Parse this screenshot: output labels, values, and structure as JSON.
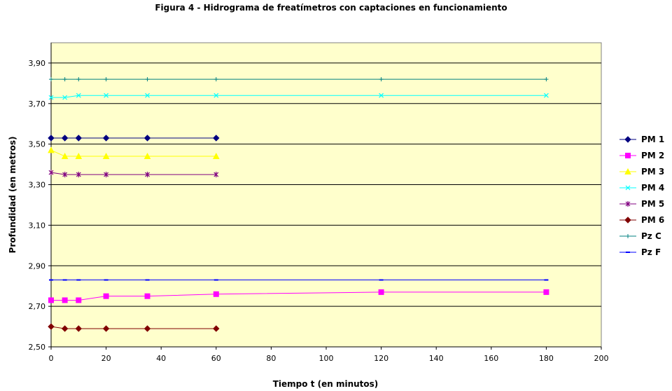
{
  "chart_data": {
    "type": "line",
    "title": "Figura 4 - Hidrograma de freatímetros con captaciones en funcionamiento",
    "xlabel": "Tiempo t (en minutos)",
    "ylabel": "Profundidad (en metros)",
    "xlim": [
      0,
      200
    ],
    "ylim": [
      2.5,
      4.0
    ],
    "xticks": [
      "0",
      "20",
      "40",
      "60",
      "80",
      "100",
      "120",
      "140",
      "160",
      "180",
      "200"
    ],
    "yticks": [
      "2,50",
      "2,70",
      "2,90",
      "3,10",
      "3,30",
      "3,50",
      "3,70",
      "3,90"
    ],
    "grid": "horizontal",
    "plot_background": "#ffffcc",
    "legend_position": "right",
    "series": [
      {
        "name": "PM 1",
        "color": "#000080",
        "marker": "diamond",
        "x": [
          0,
          5,
          10,
          20,
          35,
          60
        ],
        "y": [
          3.53,
          3.53,
          3.53,
          3.53,
          3.53,
          3.53
        ]
      },
      {
        "name": "PM 2",
        "color": "#ff00ff",
        "marker": "square",
        "x": [
          0,
          5,
          10,
          20,
          35,
          60,
          120,
          180
        ],
        "y": [
          2.73,
          2.73,
          2.73,
          2.75,
          2.75,
          2.76,
          2.77,
          2.77
        ]
      },
      {
        "name": "PM 3",
        "color": "#ffff00",
        "marker": "triangle",
        "x": [
          0,
          5,
          10,
          20,
          35,
          60
        ],
        "y": [
          3.47,
          3.44,
          3.44,
          3.44,
          3.44,
          3.44
        ]
      },
      {
        "name": "PM 4",
        "color": "#00ffff",
        "marker": "x",
        "x": [
          0,
          5,
          10,
          20,
          35,
          60,
          120,
          180
        ],
        "y": [
          3.73,
          3.73,
          3.74,
          3.74,
          3.74,
          3.74,
          3.74,
          3.74
        ]
      },
      {
        "name": "PM 5",
        "color": "#800080",
        "marker": "star",
        "x": [
          0,
          5,
          10,
          20,
          35,
          60
        ],
        "y": [
          3.36,
          3.35,
          3.35,
          3.35,
          3.35,
          3.35
        ]
      },
      {
        "name": "PM 6",
        "color": "#800000",
        "marker": "diamond",
        "x": [
          0,
          5,
          10,
          20,
          35,
          60
        ],
        "y": [
          2.6,
          2.59,
          2.59,
          2.59,
          2.59,
          2.59
        ]
      },
      {
        "name": "Pz C",
        "color": "#008080",
        "marker": "plus",
        "x": [
          0,
          5,
          10,
          20,
          35,
          60,
          120,
          180
        ],
        "y": [
          3.82,
          3.82,
          3.82,
          3.82,
          3.82,
          3.82,
          3.82,
          3.82
        ]
      },
      {
        "name": "Pz F",
        "color": "#0000ff",
        "marker": "dash",
        "x": [
          0,
          5,
          10,
          20,
          35,
          60,
          120,
          180
        ],
        "y": [
          2.83,
          2.83,
          2.83,
          2.83,
          2.83,
          2.83,
          2.83,
          2.83
        ]
      }
    ]
  }
}
